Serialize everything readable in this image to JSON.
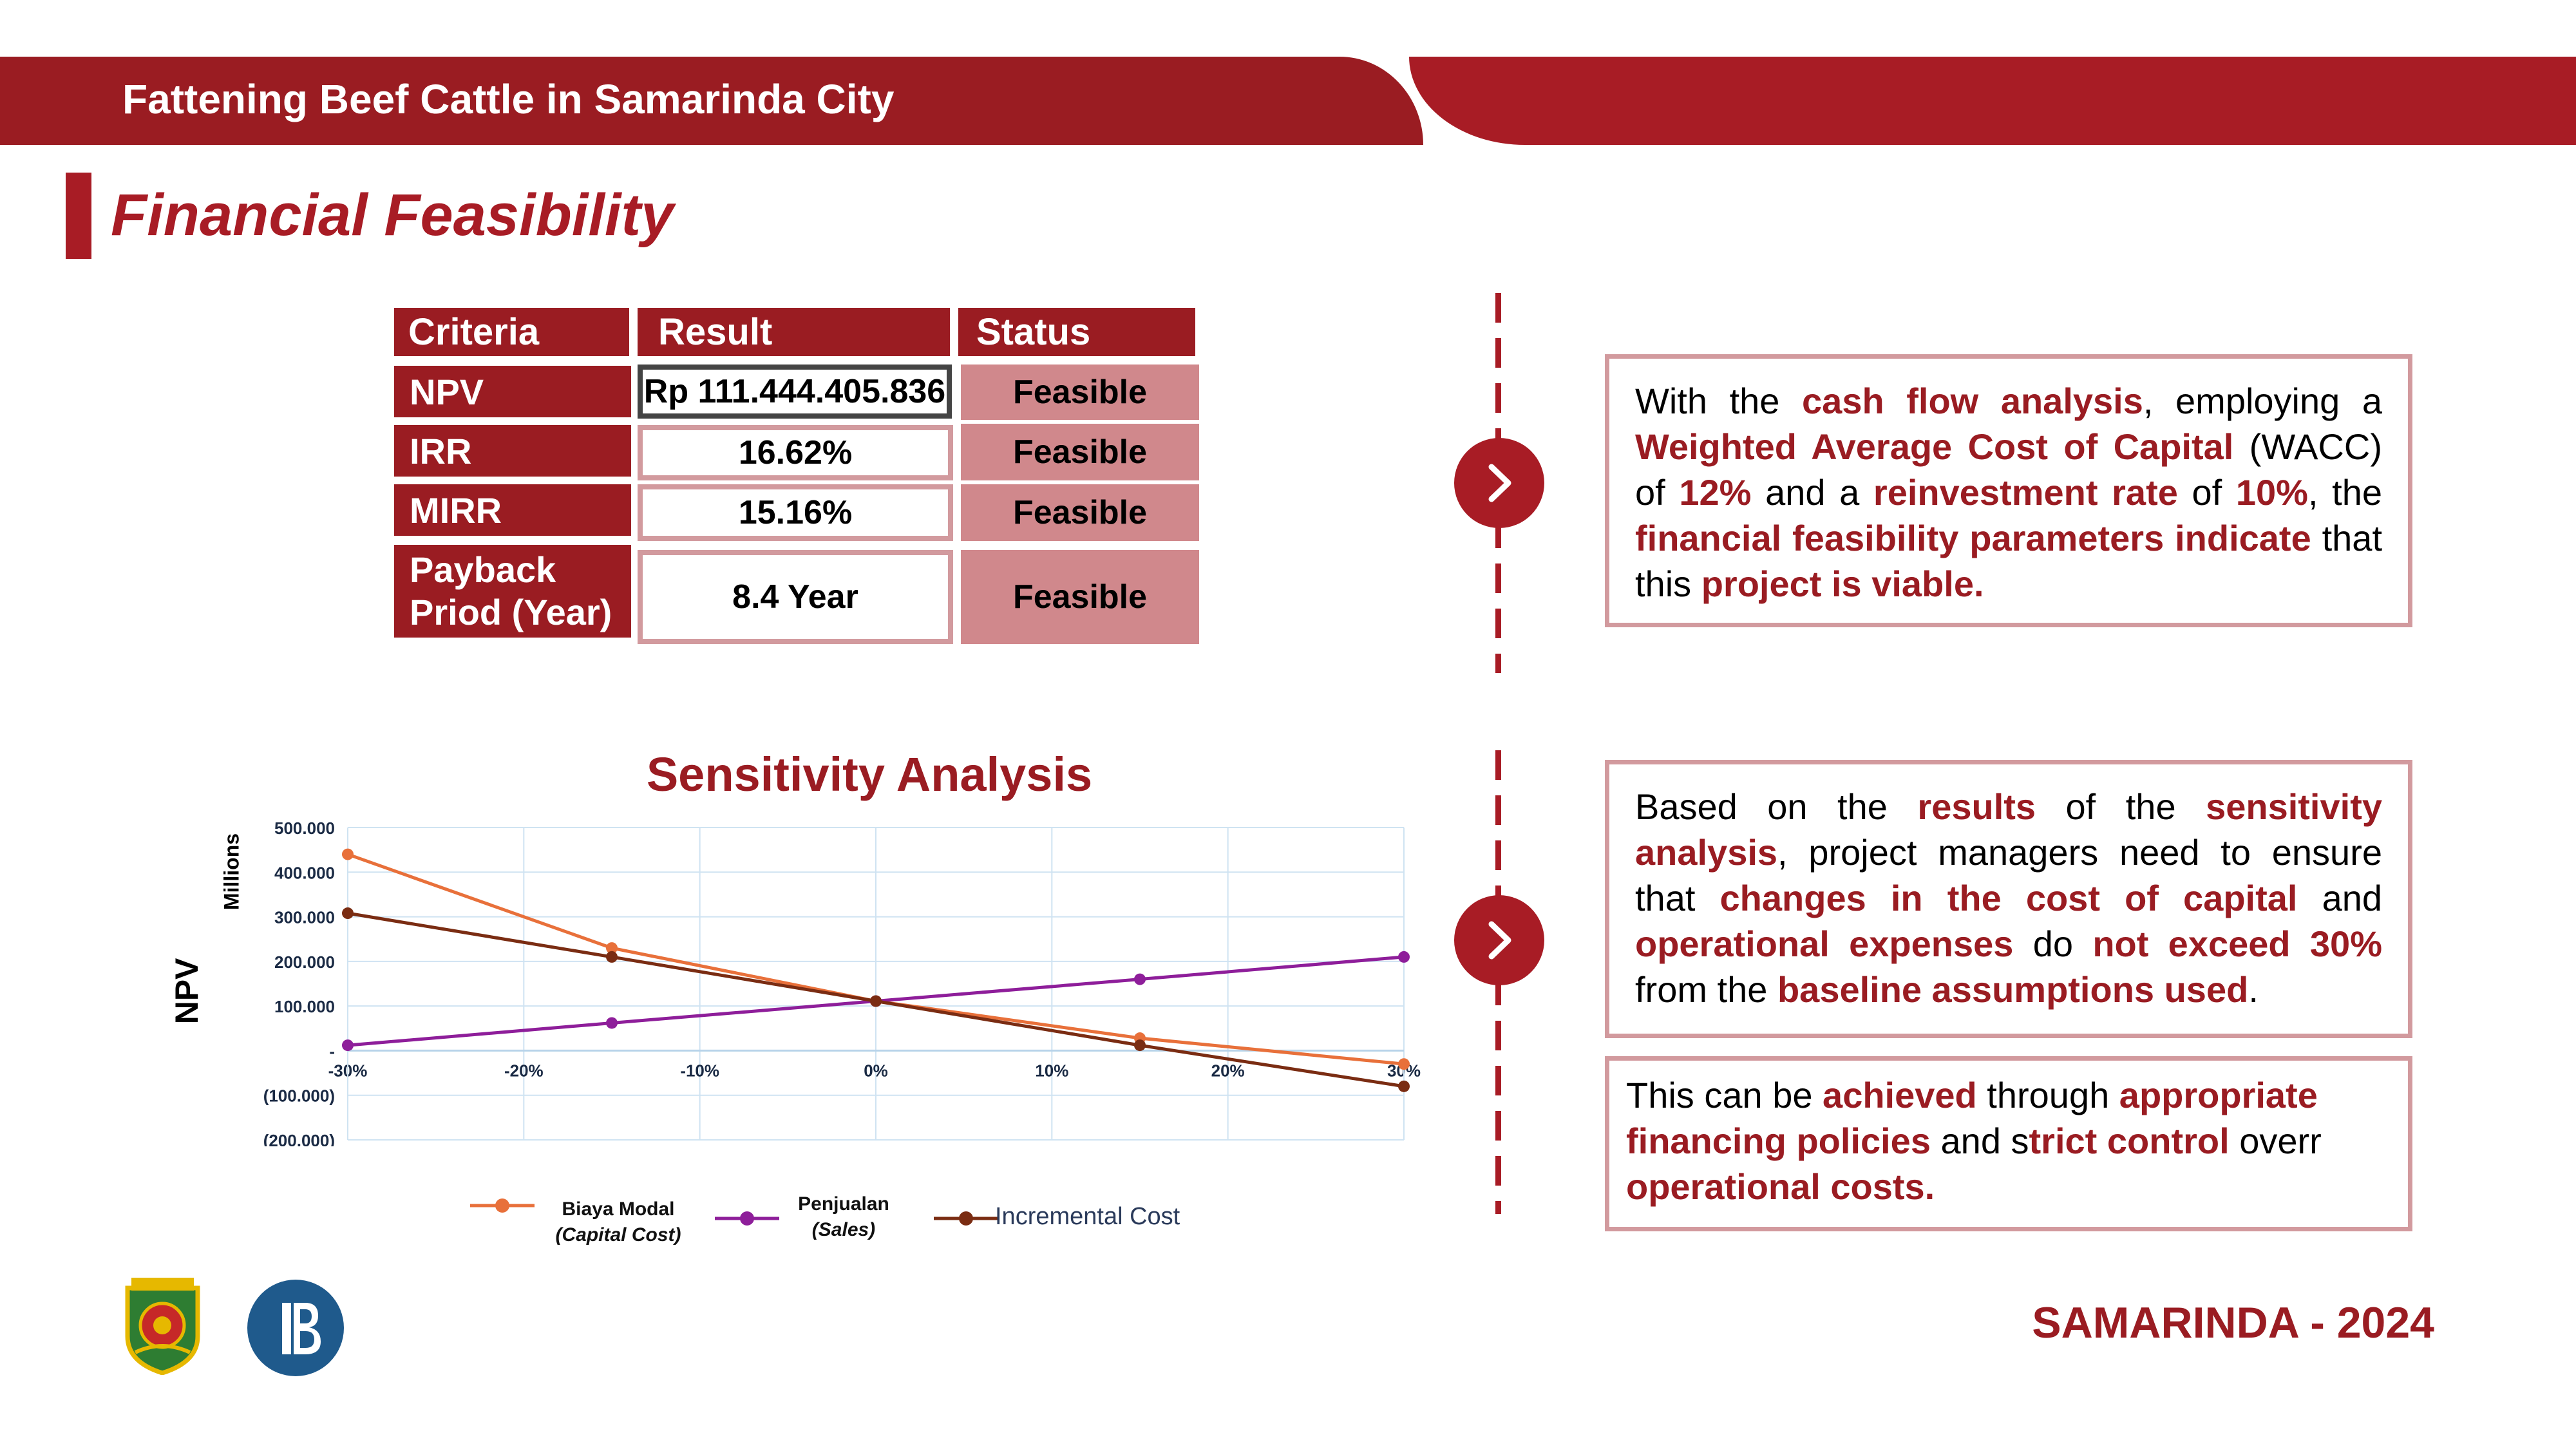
{
  "header": {
    "title": "Fattening Beef Cattle in Samarinda City"
  },
  "section": {
    "title": "Financial Feasibility"
  },
  "table": {
    "headers": [
      "Criteria",
      "Result",
      "Status"
    ],
    "rows": [
      {
        "criteria": "NPV",
        "result": "Rp 111.444.405.836",
        "status": "Feasible"
      },
      {
        "criteria": "IRR",
        "result": "16.62%",
        "status": "Feasible"
      },
      {
        "criteria": "MIRR",
        "result": "15.16%",
        "status": "Feasible"
      },
      {
        "criteria_line1": "Payback",
        "criteria_line2": "Priod (Year)",
        "result": "8.4 Year",
        "status": "Feasible"
      }
    ]
  },
  "box1": {
    "t1": "With the ",
    "h1": "cash flow analysis",
    "t2": ", employing a ",
    "h2": "Weighted Average Cost of Capital",
    "t3": " (WACC) of ",
    "h3": "12%",
    "t4": " and a ",
    "h4": "reinvestment rate",
    "t5": " of ",
    "h5": "10%",
    "t6": ", the ",
    "h6": "financial feasibility parameters indicate",
    "t7": " that this ",
    "h7": "project is viable."
  },
  "box2": {
    "t1": "Based on the ",
    "h1": "results",
    "t2": " of the ",
    "h2": "sensitivity analysis",
    "t3": ", project managers need to ensure that ",
    "h3": "changes in the cost of capital",
    "t4": " and ",
    "h4": "operational expenses",
    "t5": " do ",
    "h5": "not exceed 30%",
    "t6": " from the ",
    "h6": "baseline assumptions used",
    "t7": "."
  },
  "box3": {
    "t1": "This can be ",
    "h1": "achieved",
    "t2": " through ",
    "h2": "appropriate financing policies",
    "t3": " and s",
    "h3": "trict control",
    "t4": " overr ",
    "h4": "operational costs."
  },
  "icons": {
    "arrow": "chevron-right-icon",
    "logo1": "samarinda-emblem",
    "logo2": "bank-indonesia-logo"
  },
  "colors": {
    "primary": "#a81c25",
    "dark_red": "#9a1c22",
    "pink": "#d0888c",
    "orange": "#e8703a",
    "purple": "#8e1e9a",
    "brown": "#7a2c12"
  },
  "chart_data": {
    "type": "line",
    "title": "Sensitivity Analysis",
    "ylabel": "NPV",
    "yunit": "Millions",
    "ylim": [
      -200000,
      500000
    ],
    "ytick_labels": [
      "500.000",
      "400.000",
      "300.000",
      "200.000",
      "100.000",
      "-",
      "(100.000)",
      "(200.000)"
    ],
    "xtick_labels": [
      "-30%",
      "-20%",
      "-10%",
      "0%",
      "10%",
      "20%",
      "30%"
    ],
    "x": [
      -30,
      -15,
      0,
      15,
      30
    ],
    "grid": true,
    "legend_position": "bottom",
    "series": [
      {
        "name": "Biaya Modal",
        "name_sub": "(Capital Cost)",
        "color": "#e8703a",
        "values": [
          440000,
          230000,
          111000,
          28000,
          -30000
        ]
      },
      {
        "name": "Penjualan",
        "name_sub": "(Sales)",
        "color": "#8e1e9a",
        "values": [
          12000,
          62000,
          111000,
          160000,
          210000
        ]
      },
      {
        "name": "Incremental Cost",
        "color": "#7a2c12",
        "values": [
          308000,
          210000,
          111000,
          12000,
          -80000
        ]
      }
    ]
  },
  "footer": {
    "text": "SAMARINDA - 2024"
  }
}
